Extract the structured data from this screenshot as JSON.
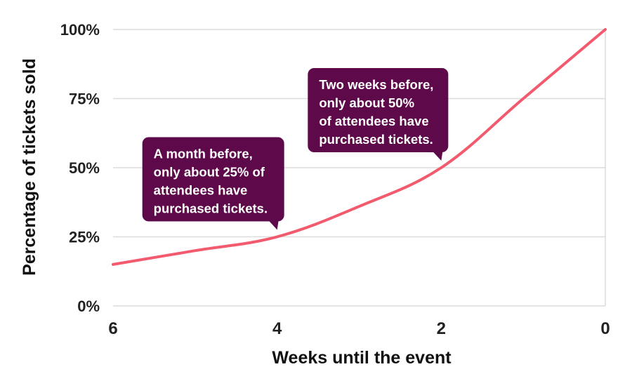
{
  "chart_data": {
    "type": "line",
    "xlabel": "Weeks until the event",
    "ylabel": "Percentage of tickets sold",
    "x_ticks": [
      "6",
      "4",
      "2",
      "0"
    ],
    "y_ticks": [
      "0%",
      "25%",
      "50%",
      "75%",
      "100%"
    ],
    "xlim": [
      6,
      0
    ],
    "ylim": [
      0,
      100
    ],
    "grid": true,
    "series": [
      {
        "x": [
          6,
          5,
          4,
          3,
          2,
          1,
          0
        ],
        "y": [
          15,
          20,
          25,
          36,
          50,
          75,
          100
        ]
      }
    ],
    "annotations": [
      {
        "x": 4,
        "y": 25,
        "lines": [
          "A month before,",
          "only about 25% of",
          "attendees have",
          "purchased tickets."
        ]
      },
      {
        "x": 2,
        "y": 50,
        "lines": [
          "Two weeks before,",
          "only about 50%",
          "of attendees have",
          "purchased tickets."
        ]
      }
    ]
  },
  "colors": {
    "line": "#f25a6e",
    "callout": "#5e0a4a",
    "grid": "#dcdcdc",
    "text": "#222222"
  }
}
